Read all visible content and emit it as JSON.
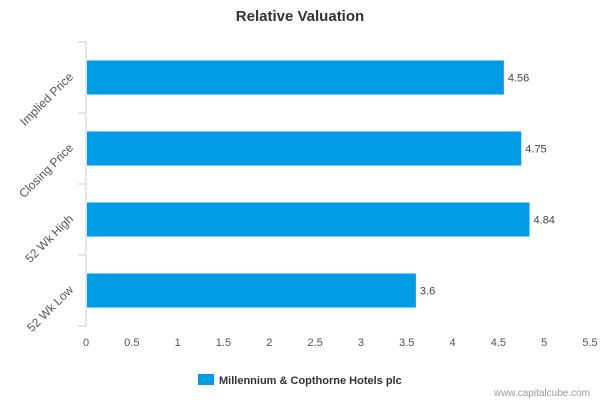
{
  "chart_data": {
    "type": "bar",
    "orientation": "horizontal",
    "title": "Relative Valuation",
    "categories": [
      "Implied Price",
      "Closing Price",
      "52 Wk High",
      "52 Wk Low"
    ],
    "series": [
      {
        "name": "Millennium & Copthorne Hotels plc",
        "values": [
          4.56,
          4.75,
          4.84,
          3.6
        ],
        "labels": [
          "4.56",
          "4.75",
          "4.84",
          "3.6"
        ],
        "color": "#009de6"
      }
    ],
    "xlim": [
      0,
      5.5
    ],
    "xticks": [
      "0",
      "0.5",
      "1",
      "1.5",
      "2",
      "2.5",
      "3",
      "3.5",
      "4",
      "4.5",
      "5",
      "5.5"
    ],
    "grid": false,
    "legend_position": "bottom"
  },
  "watermark": "www.capitalcube.com"
}
